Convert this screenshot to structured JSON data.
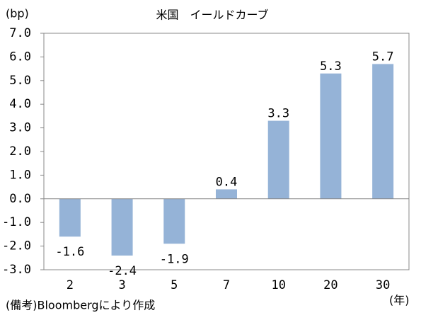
{
  "chart_data": {
    "type": "bar",
    "title": "米国　イールドカーブ",
    "y_unit": "(bp)",
    "x_unit": "(年)",
    "note": "(備考)Bloombergにより作成",
    "categories": [
      "2",
      "3",
      "5",
      "7",
      "10",
      "20",
      "30"
    ],
    "values": [
      -1.6,
      -2.4,
      -1.9,
      0.4,
      3.3,
      5.3,
      5.7
    ],
    "color": "#95b3d7",
    "ylim": [
      -3,
      7
    ],
    "yticks": [
      {
        "value": -3,
        "label": "-3.0"
      },
      {
        "value": -2,
        "label": "-2.0"
      },
      {
        "value": -1,
        "label": "-1.0"
      },
      {
        "value": 0,
        "label": "0.0"
      },
      {
        "value": 1,
        "label": "1.0"
      },
      {
        "value": 2,
        "label": "2.0"
      },
      {
        "value": 3,
        "label": "3.0"
      },
      {
        "value": 4,
        "label": "4.0"
      },
      {
        "value": 5,
        "label": "5.0"
      },
      {
        "value": 6,
        "label": "6.0"
      },
      {
        "value": 7,
        "label": "7.0"
      }
    ],
    "grid": false
  }
}
